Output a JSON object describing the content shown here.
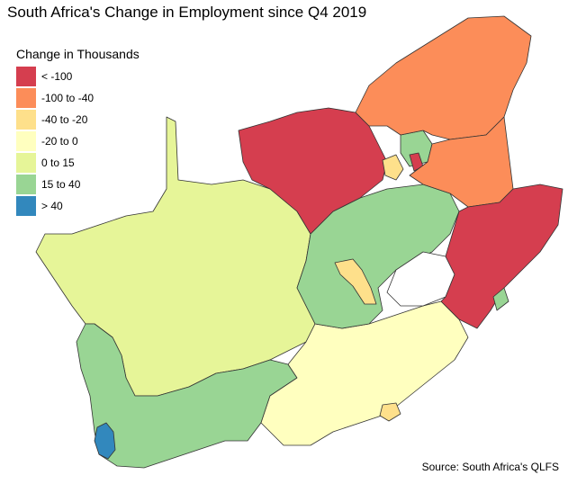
{
  "title": "South Africa's Change in Employment since Q4 2019",
  "legend": {
    "title": "Change in Thousands",
    "items": [
      {
        "label": "< -100",
        "color": "#d53e4f"
      },
      {
        "label": "-100 to -40",
        "color": "#fc8d59"
      },
      {
        "label": "-40 to -20",
        "color": "#fee08b"
      },
      {
        "label": "-20 to 0",
        "color": "#ffffbf"
      },
      {
        "label": "0 to 15",
        "color": "#e6f598"
      },
      {
        "label": "15 to 40",
        "color": "#99d594"
      },
      {
        "label": "> 40",
        "color": "#3288bd"
      }
    ]
  },
  "source": "Source: South Africa's QLFS",
  "colors": {
    "border": "#333333",
    "background": "#ffffff"
  }
}
